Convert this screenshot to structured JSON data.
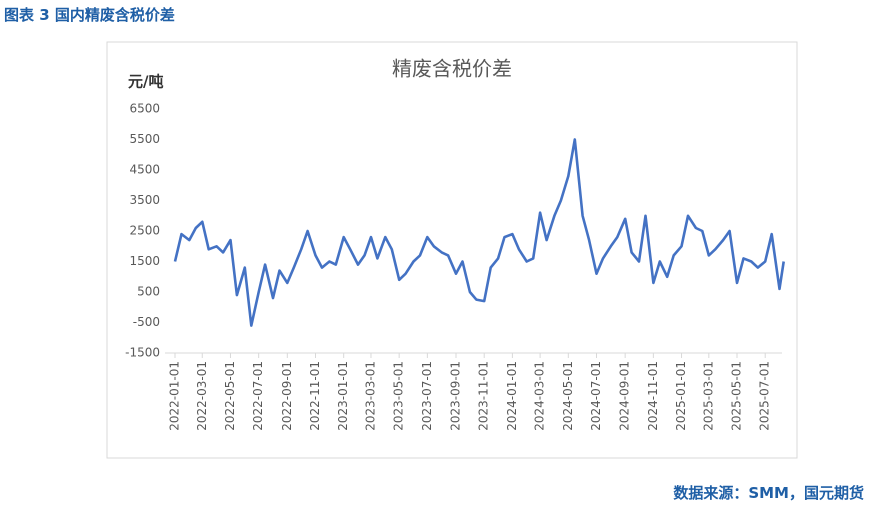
{
  "header": {
    "title": "图表 3 国内精废含税价差"
  },
  "chart_data": {
    "type": "line",
    "title": "精废含税价差",
    "y_label": "元/吨",
    "x": [
      "2022-01-01",
      "2022-01-15",
      "2022-02-01",
      "2022-02-15",
      "2022-03-01",
      "2022-03-15",
      "2022-04-01",
      "2022-04-15",
      "2022-05-01",
      "2022-05-15",
      "2022-06-01",
      "2022-06-15",
      "2022-07-01",
      "2022-07-15",
      "2022-08-01",
      "2022-08-15",
      "2022-09-01",
      "2022-09-15",
      "2022-10-01",
      "2022-10-15",
      "2022-11-01",
      "2022-11-15",
      "2022-12-01",
      "2022-12-15",
      "2023-01-01",
      "2023-01-15",
      "2023-02-01",
      "2023-02-15",
      "2023-03-01",
      "2023-03-15",
      "2023-04-01",
      "2023-04-15",
      "2023-05-01",
      "2023-05-15",
      "2023-06-01",
      "2023-06-15",
      "2023-07-01",
      "2023-07-15",
      "2023-08-01",
      "2023-08-15",
      "2023-09-01",
      "2023-09-15",
      "2023-10-01",
      "2023-10-15",
      "2023-11-01",
      "2023-11-15",
      "2023-12-01",
      "2023-12-15",
      "2024-01-01",
      "2024-01-15",
      "2024-02-01",
      "2024-02-15",
      "2024-03-01",
      "2024-03-15",
      "2024-04-01",
      "2024-04-15",
      "2024-05-01",
      "2024-05-15",
      "2024-06-01",
      "2024-06-15",
      "2024-07-01",
      "2024-07-15",
      "2024-08-01",
      "2024-08-15",
      "2024-09-01",
      "2024-09-15",
      "2024-10-01",
      "2024-10-15",
      "2024-11-01",
      "2024-11-15",
      "2024-12-01",
      "2024-12-15",
      "2025-01-01",
      "2025-01-15",
      "2025-02-01",
      "2025-02-15",
      "2025-03-01",
      "2025-03-15",
      "2025-04-01",
      "2025-04-15",
      "2025-05-01",
      "2025-05-15",
      "2025-06-01",
      "2025-06-15",
      "2025-07-01",
      "2025-07-15",
      "2025-08-01",
      "2025-08-10"
    ],
    "series": [
      {
        "name": "精废含税价差",
        "color": "#4472c4",
        "values": [
          1500,
          2400,
          2200,
          2600,
          2800,
          1900,
          2000,
          1800,
          2200,
          400,
          1300,
          -600,
          500,
          1400,
          300,
          1200,
          800,
          1300,
          1900,
          2500,
          1700,
          1300,
          1500,
          1400,
          2300,
          1900,
          1400,
          1700,
          2300,
          1600,
          2300,
          1900,
          900,
          1100,
          1500,
          1700,
          2300,
          2000,
          1800,
          1700,
          1100,
          1500,
          500,
          250,
          200,
          1300,
          1600,
          2300,
          2400,
          1900,
          1500,
          1600,
          3100,
          2200,
          3000,
          3500,
          4300,
          5500,
          3000,
          2200,
          1100,
          1600,
          2000,
          2300,
          2900,
          1800,
          1500,
          3000,
          800,
          1500,
          1000,
          1700,
          2000,
          3000,
          2600,
          2500,
          1700,
          1900,
          2200,
          2500,
          800,
          1600,
          1500,
          1300,
          1500,
          2400,
          600,
          1500
        ]
      }
    ],
    "xlim": [
      "2022-01-01",
      "2025-08-15"
    ],
    "xticks": [
      "2022-01-01",
      "2022-03-01",
      "2022-05-01",
      "2022-07-01",
      "2022-09-01",
      "2022-11-01",
      "2023-01-01",
      "2023-03-01",
      "2023-05-01",
      "2023-07-01",
      "2023-09-01",
      "2023-11-01",
      "2024-01-01",
      "2024-03-01",
      "2024-05-01",
      "2024-07-01",
      "2024-09-01",
      "2024-11-01",
      "2025-01-01",
      "2025-03-01",
      "2025-05-01",
      "2025-07-01"
    ],
    "ylim": [
      -1500,
      6500
    ],
    "yticks": [
      -1500,
      -500,
      500,
      1500,
      2500,
      3500,
      4500,
      5500,
      6500
    ]
  },
  "footer": {
    "source": "数据来源：SMM，国元期货"
  }
}
